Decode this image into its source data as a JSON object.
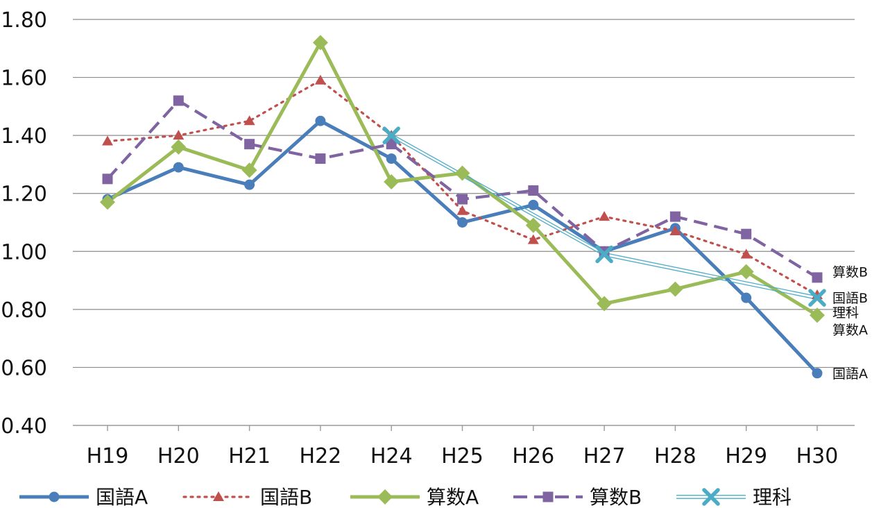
{
  "chart_data": {
    "type": "line",
    "categories": [
      "H19",
      "H20",
      "H21",
      "H22",
      "H24",
      "H25",
      "H26",
      "H27",
      "H28",
      "H29",
      "H30"
    ],
    "ylim": [
      0.4,
      1.8
    ],
    "yticks": [
      "0.40",
      "0.60",
      "0.80",
      "1.00",
      "1.20",
      "1.40",
      "1.60",
      "1.80"
    ],
    "grid": true,
    "legend_position": "bottom",
    "series": [
      {
        "name": "国語A",
        "color": "#4a7ebb",
        "marker": "circle",
        "style": "solid-thick",
        "values": [
          1.18,
          1.29,
          1.23,
          1.45,
          1.32,
          1.1,
          1.16,
          1.0,
          1.08,
          0.84,
          0.58
        ]
      },
      {
        "name": "国語B",
        "color": "#c0504d",
        "marker": "triangle",
        "style": "dotted",
        "values": [
          1.38,
          1.4,
          1.45,
          1.59,
          1.4,
          1.14,
          1.04,
          1.12,
          1.07,
          0.99,
          0.85
        ]
      },
      {
        "name": "算数A",
        "color": "#9bbb59",
        "marker": "diamond",
        "style": "solid-thick",
        "values": [
          1.17,
          1.36,
          1.28,
          1.72,
          1.24,
          1.27,
          1.09,
          0.82,
          0.87,
          0.93,
          0.78
        ]
      },
      {
        "name": "算数B",
        "color": "#8064a2",
        "marker": "square",
        "style": "dashed",
        "values": [
          1.25,
          1.52,
          1.37,
          1.32,
          1.37,
          1.18,
          1.21,
          1.0,
          1.12,
          1.06,
          0.91
        ]
      },
      {
        "name": "理科",
        "color": "#4bacc6",
        "marker": "x",
        "style": "double",
        "values": [
          null,
          null,
          null,
          null,
          1.4,
          null,
          null,
          0.99,
          null,
          null,
          0.84
        ]
      }
    ],
    "end_labels": [
      {
        "text": "算数B",
        "y": 0.93
      },
      {
        "text": "国語B",
        "y": 0.84
      },
      {
        "text": "理科",
        "y": 0.79
      },
      {
        "text": "算数A",
        "y": 0.73
      },
      {
        "text": "国語A",
        "y": 0.58
      }
    ]
  }
}
